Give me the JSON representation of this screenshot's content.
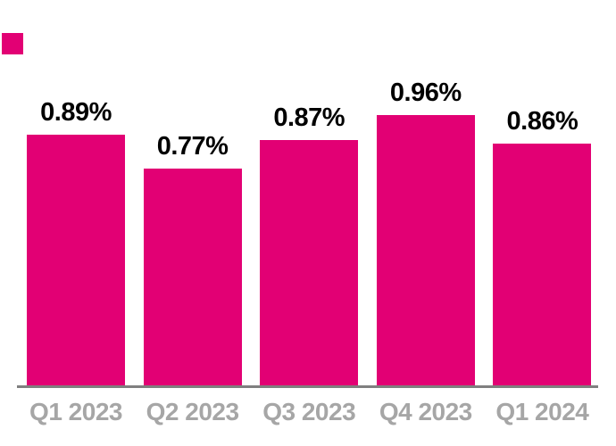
{
  "chart_data": {
    "type": "bar",
    "categories": [
      "Q1 2023",
      "Q2 2023",
      "Q3 2023",
      "Q4 2023",
      "Q1 2024"
    ],
    "values": [
      0.89,
      0.77,
      0.87,
      0.96,
      0.86
    ],
    "value_labels": [
      "0.89%",
      "0.77%",
      "0.87%",
      "0.96%",
      "0.86%"
    ],
    "title": "",
    "xlabel": "",
    "ylabel": "",
    "ylim": [
      0,
      1.0
    ],
    "grid": false,
    "legend_position": "top-left",
    "colors": {
      "bar": "#E20074",
      "legend_swatch": "#E20074",
      "value_label": "#000000",
      "category_label": "#A6A6A6",
      "axis_line": "#7F7F7F",
      "background": "#FFFFFF"
    }
  }
}
